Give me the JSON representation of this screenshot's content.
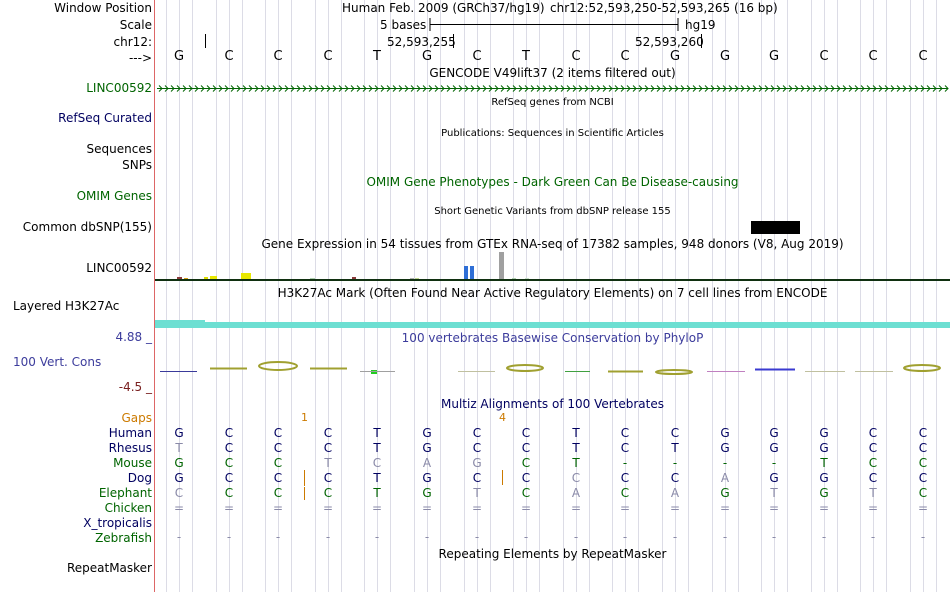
{
  "labels": {
    "window_position": "Window Position",
    "scale": "Scale",
    "chrom": "chr12:",
    "arrow": "--->",
    "gencode_gene": "LINC00592",
    "refseq": "RefSeq Curated",
    "sequences": "Sequences",
    "snps": "SNPs",
    "omim": "OMIM Genes",
    "dbsnp": "Common dbSNP(155)",
    "gtex_gene": "LINC00592",
    "h3k27ac": "Layered H3K27Ac",
    "cons_max": "4.88 _",
    "cons_name": "100 Vert. Cons",
    "cons_min": "-4.5 _",
    "gaps": "Gaps",
    "species": [
      "Human",
      "Rhesus",
      "Mouse",
      "Dog",
      "Elephant",
      "Chicken",
      "X_tropicalis",
      "Zebrafish"
    ],
    "repeatmasker": "RepeatMasker"
  },
  "ruler": {
    "assembly": "Human Feb. 2009 (GRCh37/hg19)",
    "position": "chr12:52,593,250-52,593,265 (16 bp)",
    "scale_text": "5 bases",
    "scale_db": "hg19",
    "coord1": "52,593,255",
    "coord2": "52,593,260"
  },
  "sequence": [
    "G",
    "C",
    "C",
    "C",
    "T",
    "G",
    "C",
    "T",
    "C",
    "C",
    "G",
    "G",
    "G",
    "C",
    "C",
    "C"
  ],
  "track_titles": {
    "gencode": "GENCODE V49lift37 (2 items filtered out)",
    "refseq": "RefSeq genes from NCBI",
    "publications": "Publications: Sequences in Scientific Articles",
    "omim": "OMIM Gene Phenotypes - Dark Green Can Be Disease-causing",
    "dbsnp": "Short Genetic Variants from dbSNP release 155",
    "gtex": "Gene Expression in 54 tissues from GTEx RNA-seq of 17382 samples, 948 donors (V8, Aug 2019)",
    "h3k27ac": "H3K27Ac Mark (Often Found Near Active Regulatory Elements) on 7 cell lines from ENCODE",
    "phylop": "100 vertebrates Basewise Conservation by PhyloP",
    "multiz": "Multiz Alignments of 100 Vertebrates",
    "repeatmasker": "Repeating Elements by RepeatMasker"
  },
  "gaps": [
    "1",
    "4"
  ],
  "alignment": {
    "Human": [
      "G",
      "C",
      "C",
      "C",
      "T",
      "G",
      "C",
      "C",
      "T",
      "C",
      "C",
      "G",
      "G",
      "G",
      "C",
      "C"
    ],
    "Rhesus": [
      "T",
      "C",
      "C",
      "C",
      "T",
      "G",
      "C",
      "C",
      "T",
      "C",
      "T",
      "G",
      "G",
      "G",
      "C",
      "C"
    ],
    "Mouse": [
      "G",
      "C",
      "C",
      "T",
      "C",
      "A",
      "G",
      "C",
      "T",
      "-",
      "-",
      "-",
      "-",
      "T",
      "C",
      "C"
    ],
    "Dog": [
      "G",
      "C",
      "C",
      "C",
      "T",
      "G",
      "C",
      "C",
      "C",
      "C",
      "C",
      "A",
      "G",
      "G",
      "C",
      "C"
    ],
    "Elephant": [
      "C",
      "C",
      "C",
      "C",
      "T",
      "G",
      "T",
      "C",
      "A",
      "C",
      "A",
      "G",
      "T",
      "G",
      "T",
      "C"
    ],
    "Chicken": [
      "=",
      "=",
      "=",
      "=",
      "=",
      "=",
      "=",
      "=",
      "=",
      "=",
      "=",
      "=",
      "=",
      "=",
      "=",
      "="
    ],
    "Zebrafish": [
      "-",
      "-",
      "-",
      "-",
      "-",
      "-",
      "-",
      "-",
      "-",
      "-",
      "-",
      "-",
      "-",
      "-",
      "-",
      "-"
    ]
  },
  "colors": {
    "navy": "#000060",
    "green": "#006400",
    "gaps": "#cc7a00",
    "h3k27ac": "#6ddfd2",
    "gtex_blue": "#2f6fd6",
    "gtex_gray": "#a0a0a0"
  }
}
